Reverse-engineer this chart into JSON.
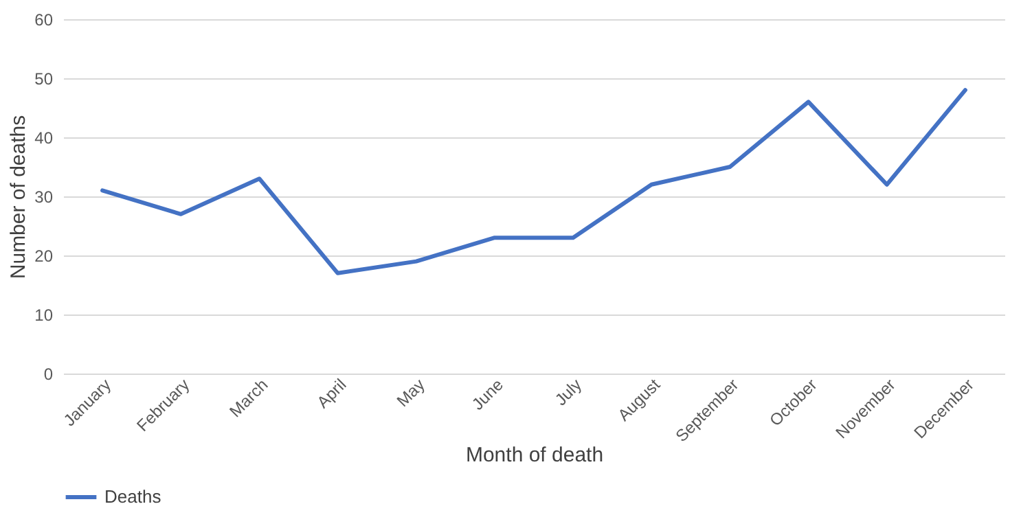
{
  "chart_data": {
    "type": "line",
    "xlabel": "Month of death",
    "ylabel": "Number of deaths",
    "categories": [
      "January",
      "February",
      "March",
      "April",
      "May",
      "June",
      "July",
      "August",
      "September",
      "October",
      "November",
      "December"
    ],
    "series": [
      {
        "name": "Deaths",
        "color": "#4472c4",
        "values": [
          31,
          27,
          33,
          17,
          19,
          23,
          23,
          32,
          35,
          46,
          32,
          48
        ]
      }
    ],
    "ylim": [
      0,
      60
    ],
    "yticks": [
      0,
      10,
      20,
      30,
      40,
      50,
      60
    ],
    "grid": "y",
    "legend": "bottom",
    "marker": "none",
    "line_style": "solid"
  }
}
